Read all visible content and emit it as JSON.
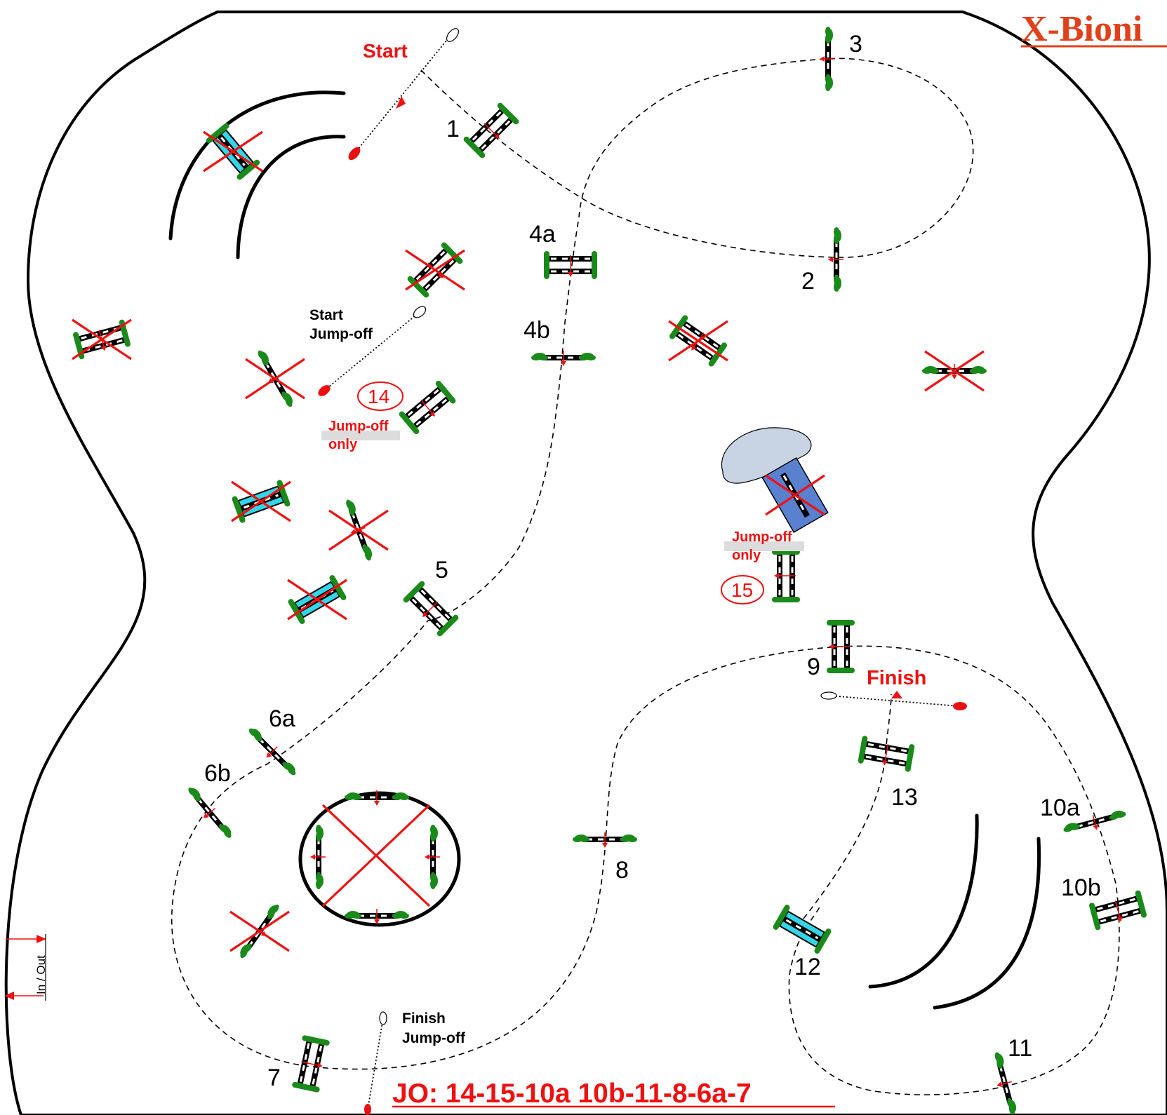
{
  "title": "X-Bioni",
  "start_label": "Start",
  "finish_label": "Finish",
  "start_jumpoff": [
    "Start",
    "Jump-off"
  ],
  "finish_jumpoff": [
    "Finish",
    "Jump-off"
  ],
  "jumpoff_only": [
    "Jump-off",
    "only"
  ],
  "jumpoff_sequence": "JO: 14-15-10a 10b-11-8-6a-7",
  "in_out_label": "In / Out",
  "jumps": [
    {
      "label": "1"
    },
    {
      "label": "2"
    },
    {
      "label": "3"
    },
    {
      "label": "4a"
    },
    {
      "label": "4b"
    },
    {
      "label": "5"
    },
    {
      "label": "6a"
    },
    {
      "label": "6b"
    },
    {
      "label": "7"
    },
    {
      "label": "8"
    },
    {
      "label": "9"
    },
    {
      "label": "10a"
    },
    {
      "label": "10b"
    },
    {
      "label": "11"
    },
    {
      "label": "12"
    },
    {
      "label": "13"
    },
    {
      "label": "14"
    },
    {
      "label": "15"
    }
  ],
  "colors": {
    "accent_red": "#ee1111",
    "title_orange": "#e0401a",
    "foliage_green": "#1a8a1a",
    "water_cyan": "#33d6e8",
    "pond_gray": "#c8d4e4",
    "liverpool_blue": "#5a80d0"
  }
}
